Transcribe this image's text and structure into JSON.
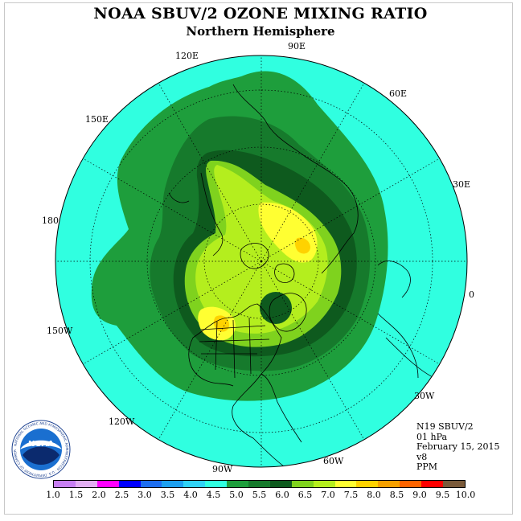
{
  "title": "NOAA SBUV/2 OZONE MIXING RATIO",
  "subtitle": "Northern Hemisphere",
  "longitude_labels": {
    "lon_90e": "90E",
    "lon_60e": "60E",
    "lon_30e": "30E",
    "lon_0": "0",
    "lon_30w": "30W",
    "lon_60w": "60W",
    "lon_90w": "90W",
    "lon_120w": "120W",
    "lon_150w": "150W",
    "lon_180": "180",
    "lon_150e": "150E",
    "lon_120e": "120E"
  },
  "info": {
    "instrument": "N19 SBUV/2",
    "level": "01 hPa",
    "date": "February 15, 2015",
    "version": "v8",
    "units": "PPM"
  },
  "colorbar": {
    "colors": [
      "#c77ff2",
      "#e2aef2",
      "#ff00ff",
      "#0000ff",
      "#1e6ef0",
      "#1ea0f0",
      "#30d2f6",
      "#30ffe0",
      "#1e9e3c",
      "#167a2c",
      "#0e5a1e",
      "#7fd21e",
      "#b4ee1e",
      "#ffff32",
      "#ffd200",
      "#f6a000",
      "#ff6400",
      "#ff0000",
      "#7a5a3a"
    ],
    "ticks": [
      "1.0",
      "1.5",
      "2.0",
      "2.5",
      "3.0",
      "3.5",
      "4.0",
      "4.5",
      "5.0",
      "5.5",
      "6.0",
      "6.5",
      "7.0",
      "7.5",
      "8.0",
      "8.5",
      "9.0",
      "9.5",
      "10.0"
    ]
  },
  "logo": {
    "text": "NOAA",
    "ring_text": "NATIONAL OCEANIC AND ATMOSPHERIC ADMINISTRATION · U.S. DEPARTMENT OF COMMERCE"
  },
  "colors": {
    "level_4_5_to_5_0": "#30ffe0",
    "level_5_0_to_5_5": "#1e9e3c",
    "level_5_5_to_6_0": "#167a2c",
    "level_6_0_to_6_5": "#0e5a1e",
    "level_6_5_to_7_0": "#7fd21e",
    "level_7_0_to_7_5": "#b4ee1e",
    "level_7_5_to_8_0": "#ffff32",
    "level_8_0_to_8_5": "#ffd200"
  }
}
